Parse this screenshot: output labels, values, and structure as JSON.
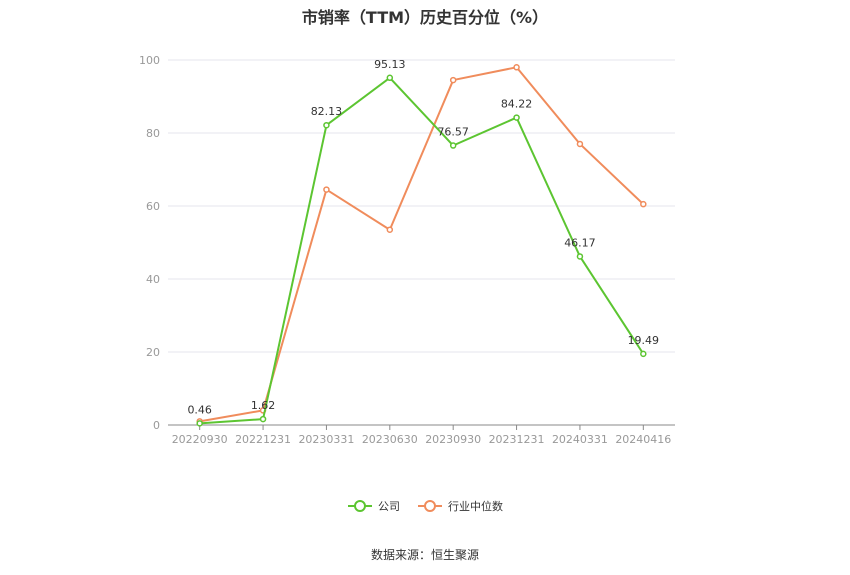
{
  "chart_data": {
    "type": "line",
    "title": "市销率（TTM）历史百分位（%）",
    "categories": [
      "20220930",
      "20221231",
      "20230331",
      "20230630",
      "20230930",
      "20231231",
      "20240331",
      "20240416"
    ],
    "series": [
      {
        "name": "公司",
        "color": "#5cc531",
        "values": [
          0.46,
          1.62,
          82.13,
          95.13,
          76.57,
          84.22,
          46.17,
          19.49
        ],
        "labels": [
          "0.46",
          "1.62",
          "82.13",
          "95.13",
          "76.57",
          "84.22",
          "46.17",
          "19.49"
        ]
      },
      {
        "name": "行业中位数",
        "color": "#f08c5c",
        "values": [
          1.0,
          4.0,
          64.5,
          53.5,
          94.5,
          98.0,
          77.0,
          60.5
        ]
      }
    ],
    "yticks": [
      0,
      20,
      40,
      60,
      80,
      100
    ],
    "ylim": [
      0,
      100
    ],
    "grid": true,
    "legend_position": "bottom",
    "source": "数据来源：恒生聚源"
  }
}
